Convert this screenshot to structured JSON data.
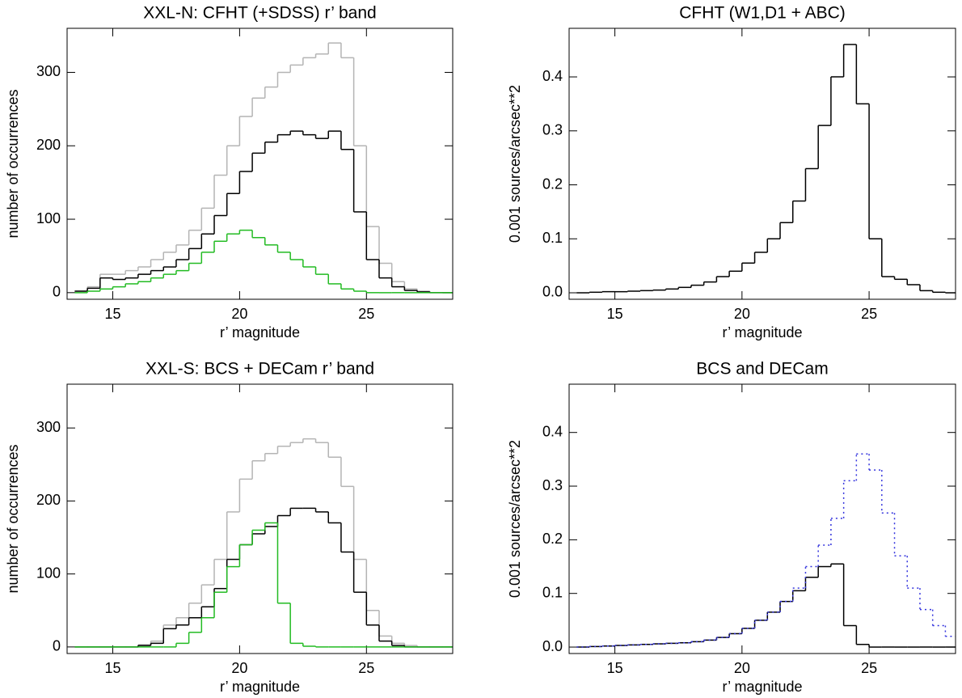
{
  "chart_data": [
    {
      "type": "histogram",
      "title": "XXL-N: CFHT (+SDSS) r’ band",
      "x_label": "r’ magnitude",
      "y_label": "number of occurrences",
      "bins": [
        13.5,
        14,
        14.5,
        15,
        15.5,
        16,
        16.5,
        17,
        17.5,
        18,
        18.5,
        19,
        19.5,
        20,
        20.5,
        21,
        21.5,
        22,
        22.5,
        23,
        23.5,
        24,
        24.5,
        25,
        25.5,
        26,
        26.5,
        27,
        27.5,
        28,
        28.5
      ],
      "series": [
        {
          "color": "#b4b4b4",
          "values": [
            2,
            8,
            25,
            25,
            30,
            35,
            45,
            55,
            65,
            85,
            115,
            160,
            200,
            240,
            265,
            280,
            300,
            310,
            320,
            325,
            340,
            320,
            200,
            90,
            40,
            15,
            5,
            2,
            0,
            0
          ]
        },
        {
          "color": "#000000",
          "values": [
            2,
            6,
            20,
            18,
            20,
            25,
            30,
            35,
            45,
            60,
            80,
            105,
            135,
            165,
            190,
            205,
            215,
            220,
            215,
            210,
            220,
            195,
            110,
            45,
            20,
            8,
            3,
            1,
            0,
            0
          ]
        },
        {
          "color": "#22bb22",
          "values": [
            0,
            2,
            5,
            8,
            12,
            15,
            20,
            25,
            30,
            40,
            55,
            70,
            80,
            85,
            75,
            65,
            55,
            45,
            35,
            25,
            12,
            5,
            2,
            0,
            0,
            0,
            0,
            0,
            0,
            0
          ]
        }
      ],
      "xlim": [
        13.2,
        28.4
      ],
      "xticks": [
        15,
        20,
        25
      ],
      "ylim": [
        -9,
        360
      ],
      "yticks": [
        0,
        100,
        200,
        300
      ]
    },
    {
      "type": "histogram",
      "title": "CFHT (W1,D1 + ABC)",
      "x_label": "r’ magnitude",
      "y_label": "0.001 sources/arcsec**2",
      "bins": [
        13.5,
        14,
        14.5,
        15,
        15.5,
        16,
        16.5,
        17,
        17.5,
        18,
        18.5,
        19,
        19.5,
        20,
        20.5,
        21,
        21.5,
        22,
        22.5,
        23,
        23.5,
        24,
        24.5,
        25,
        25.5,
        26,
        26.5,
        27,
        27.5,
        28,
        28.5
      ],
      "series": [
        {
          "color": "#000000",
          "values": [
            0,
            0.001,
            0.002,
            0.002,
            0.003,
            0.004,
            0.005,
            0.007,
            0.01,
            0.014,
            0.02,
            0.03,
            0.04,
            0.055,
            0.075,
            0.1,
            0.13,
            0.17,
            0.23,
            0.31,
            0.4,
            0.46,
            0.35,
            0.1,
            0.03,
            0.025,
            0.015,
            0.004,
            0.001,
            0
          ]
        }
      ],
      "xlim": [
        13.2,
        28.4
      ],
      "xticks": [
        15,
        20,
        25
      ],
      "ylim": [
        -0.012,
        0.49
      ],
      "yticks": [
        {
          "value": 0,
          "label": "0.0"
        },
        0.1,
        0.2,
        0.3,
        0.4
      ]
    },
    {
      "type": "histogram",
      "title": "XXL-S: BCS + DECam  r’ band",
      "x_label": "r’ magnitude",
      "y_label": "number of occurrences",
      "bins": [
        13.5,
        14,
        14.5,
        15,
        15.5,
        16,
        16.5,
        17,
        17.5,
        18,
        18.5,
        19,
        19.5,
        20,
        20.5,
        21,
        21.5,
        22,
        22.5,
        23,
        23.5,
        24,
        24.5,
        25,
        25.5,
        26,
        26.5,
        27,
        27.5,
        28,
        28.5
      ],
      "series": [
        {
          "color": "#b4b4b4",
          "values": [
            0,
            0,
            0,
            0,
            0,
            3,
            8,
            30,
            40,
            60,
            85,
            120,
            185,
            230,
            255,
            265,
            275,
            280,
            285,
            280,
            260,
            220,
            120,
            50,
            15,
            5,
            2,
            0,
            0,
            0
          ]
        },
        {
          "color": "#000000",
          "values": [
            0,
            0,
            0,
            0,
            0,
            2,
            5,
            25,
            30,
            40,
            55,
            80,
            120,
            140,
            155,
            165,
            180,
            190,
            190,
            185,
            170,
            130,
            75,
            30,
            8,
            2,
            0,
            0,
            0,
            0
          ]
        },
        {
          "color": "#22bb22",
          "values": [
            0,
            0,
            0,
            0,
            0,
            0,
            0,
            0,
            5,
            20,
            40,
            75,
            110,
            140,
            160,
            170,
            60,
            5,
            1,
            0,
            0,
            0,
            0,
            0,
            0,
            0,
            0,
            0,
            0,
            0
          ]
        }
      ],
      "xlim": [
        13.2,
        28.4
      ],
      "xticks": [
        15,
        20,
        25
      ],
      "ylim": [
        -9,
        360
      ],
      "yticks": [
        0,
        100,
        200,
        300
      ]
    },
    {
      "type": "histogram",
      "title": "BCS and DECam",
      "x_label": "r’ magnitude",
      "y_label": "0.001 sources/arcsec**2",
      "bins": [
        13.5,
        14,
        14.5,
        15,
        15.5,
        16,
        16.5,
        17,
        17.5,
        18,
        18.5,
        19,
        19.5,
        20,
        20.5,
        21,
        21.5,
        22,
        22.5,
        23,
        23.5,
        24,
        24.5,
        25,
        25.5,
        26,
        26.5,
        27,
        27.5,
        28,
        28.5
      ],
      "series": [
        {
          "color": "#000000",
          "values": [
            0,
            0.001,
            0.002,
            0.003,
            0.004,
            0.005,
            0.006,
            0.007,
            0.008,
            0.01,
            0.013,
            0.018,
            0.025,
            0.035,
            0.05,
            0.065,
            0.085,
            0.105,
            0.13,
            0.15,
            0.155,
            0.04,
            0.005,
            0,
            0,
            0,
            0,
            0,
            0,
            0
          ]
        },
        {
          "color": "#3333dd",
          "line_style": "dotted",
          "values": [
            0,
            0.001,
            0.002,
            0.003,
            0.004,
            0.005,
            0.006,
            0.007,
            0.008,
            0.01,
            0.013,
            0.018,
            0.025,
            0.035,
            0.05,
            0.065,
            0.085,
            0.11,
            0.15,
            0.19,
            0.24,
            0.31,
            0.36,
            0.33,
            0.25,
            0.17,
            0.11,
            0.07,
            0.04,
            0.02
          ]
        }
      ],
      "xlim": [
        13.2,
        28.4
      ],
      "xticks": [
        15,
        20,
        25
      ],
      "ylim": [
        -0.012,
        0.49
      ],
      "yticks": [
        {
          "value": 0,
          "label": "0.0"
        },
        0.1,
        0.2,
        0.3,
        0.4
      ]
    }
  ]
}
